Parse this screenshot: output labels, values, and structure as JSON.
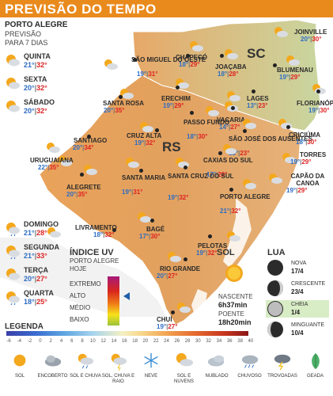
{
  "header": {
    "title": "PREVISÃO DO TEMPO"
  },
  "forecast": {
    "city": "PORTO ALEGRE",
    "subtitle_line1": "PREVISÃO",
    "subtitle_line2": "PARA 7 DIAS",
    "days": [
      {
        "name": "QUINTA",
        "min": "21°",
        "max": "32°",
        "icon": "partly-sunny-icon"
      },
      {
        "name": "SEXTA",
        "min": "20°",
        "max": "32°",
        "icon": "partly-sunny-icon"
      },
      {
        "name": "SÁBADO",
        "min": "20°",
        "max": "32°",
        "icon": "partly-sunny-icon"
      },
      {
        "name": "DOMINGO",
        "min": "21°",
        "max": "28°",
        "icon": "sun-and-rain-icon"
      },
      {
        "name": "SEGUNDA",
        "min": "21°",
        "max": "33°",
        "icon": "sun-and-rain-icon"
      },
      {
        "name": "TERÇA",
        "min": "20°",
        "max": "27°",
        "icon": "partly-sunny-icon"
      },
      {
        "name": "QUARTA",
        "min": "18°",
        "max": "25°",
        "icon": "sun-and-rain-icon"
      }
    ]
  },
  "map": {
    "states": {
      "rs": "RS",
      "sc": "SC"
    },
    "cities": [
      {
        "name": "JOINVILLE",
        "min": "20°",
        "max": "30°"
      },
      {
        "name": "CHAPECÓ",
        "min": "18°",
        "max": "29°"
      },
      {
        "name": "JOAÇABA",
        "min": "18°",
        "max": "28°"
      },
      {
        "name": "BLUMENAU",
        "min": "19°",
        "max": "29°"
      },
      {
        "name": "SÃO MIGUEL DO OESTE",
        "min": "19°",
        "max": "31°"
      },
      {
        "name": "ERECHIM",
        "min": "19°",
        "max": "29°"
      },
      {
        "name": "LAGES",
        "min": "13°",
        "max": "23°"
      },
      {
        "name": "FLORIANÓPOLIS",
        "min": "19°",
        "max": "30°"
      },
      {
        "name": "SANTA ROSA",
        "min": "20°",
        "max": "35°"
      },
      {
        "name": "PASSO FUNDO",
        "min": "18°",
        "max": "30°"
      },
      {
        "name": "VACARIA",
        "min": "14°",
        "max": "27°"
      },
      {
        "name": "CRUZ ALTA",
        "min": "19°",
        "max": "32°"
      },
      {
        "name": "SÃO JOSÉ DOS AUSENTES",
        "min": "13°",
        "max": "23°"
      },
      {
        "name": "CRICIÚMA",
        "min": "18°",
        "max": "30°"
      },
      {
        "name": "SANTIAGO",
        "min": "20°",
        "max": "34°"
      },
      {
        "name": "TORRES",
        "min": "19°",
        "max": "29°"
      },
      {
        "name": "URUGUAIANA",
        "min": "22°",
        "max": "35°"
      },
      {
        "name": "CAXIAS DO SUL",
        "min": "17°",
        "max": "29°"
      },
      {
        "name": "CAPÃO DA CANOA",
        "min": "19°",
        "max": "29°"
      },
      {
        "name": "ALEGRETE",
        "min": "20°",
        "max": "35°"
      },
      {
        "name": "SANTA MARIA",
        "min": "19°",
        "max": "31°"
      },
      {
        "name": "SANTA CRUZ DO SUL",
        "min": "19°",
        "max": "32°"
      },
      {
        "name": "PORTO ALEGRE",
        "min": "21°",
        "max": "32°"
      },
      {
        "name": "LIVRAMENTO",
        "min": "18°",
        "max": "32°"
      },
      {
        "name": "BAGÉ",
        "min": "17°",
        "max": "30°"
      },
      {
        "name": "PELOTAS",
        "min": "19°",
        "max": "32°"
      },
      {
        "name": "RIO GRANDE",
        "min": "20°",
        "max": "27°"
      },
      {
        "name": "CHUÍ",
        "min": "19°",
        "max": "27°"
      }
    ]
  },
  "uv": {
    "title": "ÍNDICE UV",
    "subtitle_line1": "PORTO ALEGRE",
    "subtitle_line2": "HOJE",
    "levels": [
      "EXTREMO",
      "ALTO",
      "MÉDIO",
      "BAIXO"
    ],
    "current": "ALTO",
    "current_fraction": 0.4
  },
  "sun": {
    "title": "SOL",
    "sunrise_label": "NASCENTE",
    "sunrise": "6h37min",
    "sunset_label": "POENTE",
    "sunset": "18h20min"
  },
  "moon": {
    "title": "LUA",
    "phases": [
      {
        "name": "NOVA",
        "date": "17/4"
      },
      {
        "name": "CRESCENTE",
        "date": "23/4"
      },
      {
        "name": "CHEIA",
        "date": "1/4",
        "highlighted": true
      },
      {
        "name": "MINGUANTE",
        "date": "10/4"
      }
    ]
  },
  "legend": {
    "title": "LEGENDA",
    "scale_ticks": [
      "-6",
      "-4",
      "-2",
      "0",
      "2",
      "4",
      "6",
      "8",
      "10",
      "12",
      "14",
      "16",
      "18",
      "20",
      "22",
      "24",
      "26",
      "28",
      "30",
      "32",
      "34",
      "36",
      "38",
      "40"
    ],
    "items": [
      {
        "label": "SOL",
        "icon": "sun-icon"
      },
      {
        "label": "ENCOBERTO",
        "icon": "overcast-icon"
      },
      {
        "label": "SOL E CHUVA",
        "icon": "sun-and-rain-icon"
      },
      {
        "label": "SOL, CHUVA E RAIO",
        "icon": "sun-rain-lightning-icon"
      },
      {
        "label": "NEVE",
        "icon": "snowflake-icon"
      },
      {
        "label": "SOL E NUVENS",
        "icon": "sun-and-clouds-icon"
      },
      {
        "label": "NUBLADO",
        "icon": "cloudy-icon"
      },
      {
        "label": "CHUVOSO",
        "icon": "rainy-icon"
      },
      {
        "label": "TROVOADAS",
        "icon": "thunderstorm-icon"
      },
      {
        "label": "GEADA",
        "icon": "frost-icon"
      }
    ]
  }
}
